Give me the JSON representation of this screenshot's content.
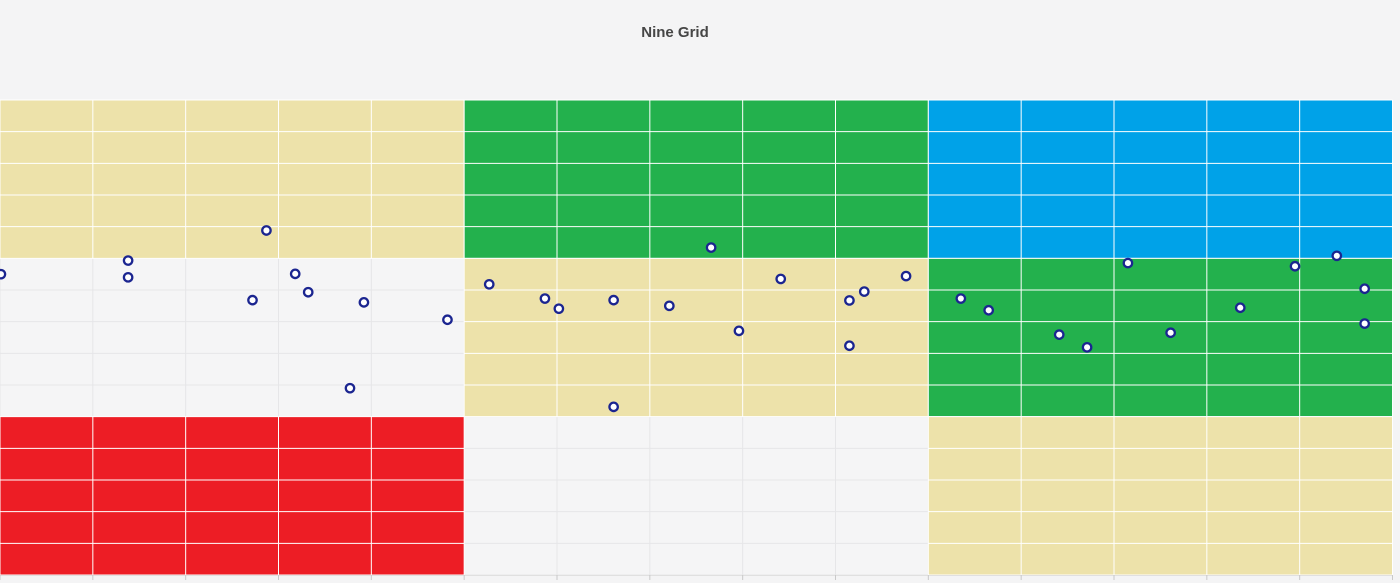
{
  "chart_data": {
    "type": "scatter",
    "title": "Nine Grid",
    "xlabel": "",
    "ylabel": "",
    "xlim": [
      0,
      15
    ],
    "ylim": [
      0,
      15
    ],
    "grid_on": true,
    "minor_cell_step": 1,
    "block_step": 5,
    "legend": "none",
    "blocks": [
      {
        "row": "top",
        "cells": [
          "tan",
          "green",
          "blue"
        ]
      },
      {
        "row": "middle",
        "cells": [
          "none",
          "tan",
          "green"
        ]
      },
      {
        "row": "bottom",
        "cells": [
          "red",
          "none",
          "tan"
        ]
      }
    ],
    "block_colors": {
      "tan": "#EDE2AA",
      "green": "#23B14D",
      "blue": "#00A2E8",
      "red": "#ED1D25",
      "none": "#F5F5F6"
    },
    "gridline_on_color_blocks": "#FFFFFF",
    "gridline_on_plain_blocks": "#E6E6E8",
    "axis_tick_color": "#C9C9C9",
    "axis_line_color": "#E0E0E0",
    "point_style": {
      "fill": "#FFFFFF",
      "stroke": "#1B2590",
      "radius": 4.2,
      "stroke_width": 2.3
    },
    "points": [
      [
        0.01,
        9.5
      ],
      [
        1.38,
        9.93
      ],
      [
        1.38,
        9.4
      ],
      [
        2.72,
        8.68
      ],
      [
        2.87,
        10.88
      ],
      [
        3.18,
        9.51
      ],
      [
        3.32,
        8.93
      ],
      [
        3.77,
        5.9
      ],
      [
        3.92,
        8.61
      ],
      [
        4.82,
        8.06
      ],
      [
        5.27,
        9.18
      ],
      [
        5.87,
        8.73
      ],
      [
        6.02,
        8.41
      ],
      [
        6.61,
        8.68
      ],
      [
        6.61,
        5.31
      ],
      [
        7.21,
        8.5
      ],
      [
        7.66,
        10.34
      ],
      [
        7.96,
        7.71
      ],
      [
        8.41,
        9.35
      ],
      [
        9.15,
        8.67
      ],
      [
        9.15,
        7.24
      ],
      [
        9.31,
        8.95
      ],
      [
        9.76,
        9.44
      ],
      [
        10.35,
        8.73
      ],
      [
        10.65,
        8.36
      ],
      [
        11.41,
        7.59
      ],
      [
        11.71,
        7.19
      ],
      [
        12.15,
        9.85
      ],
      [
        12.61,
        7.65
      ],
      [
        13.36,
        8.44
      ],
      [
        13.95,
        9.75
      ],
      [
        14.4,
        10.08
      ],
      [
        14.7,
        9.04
      ],
      [
        14.7,
        7.94
      ]
    ]
  }
}
